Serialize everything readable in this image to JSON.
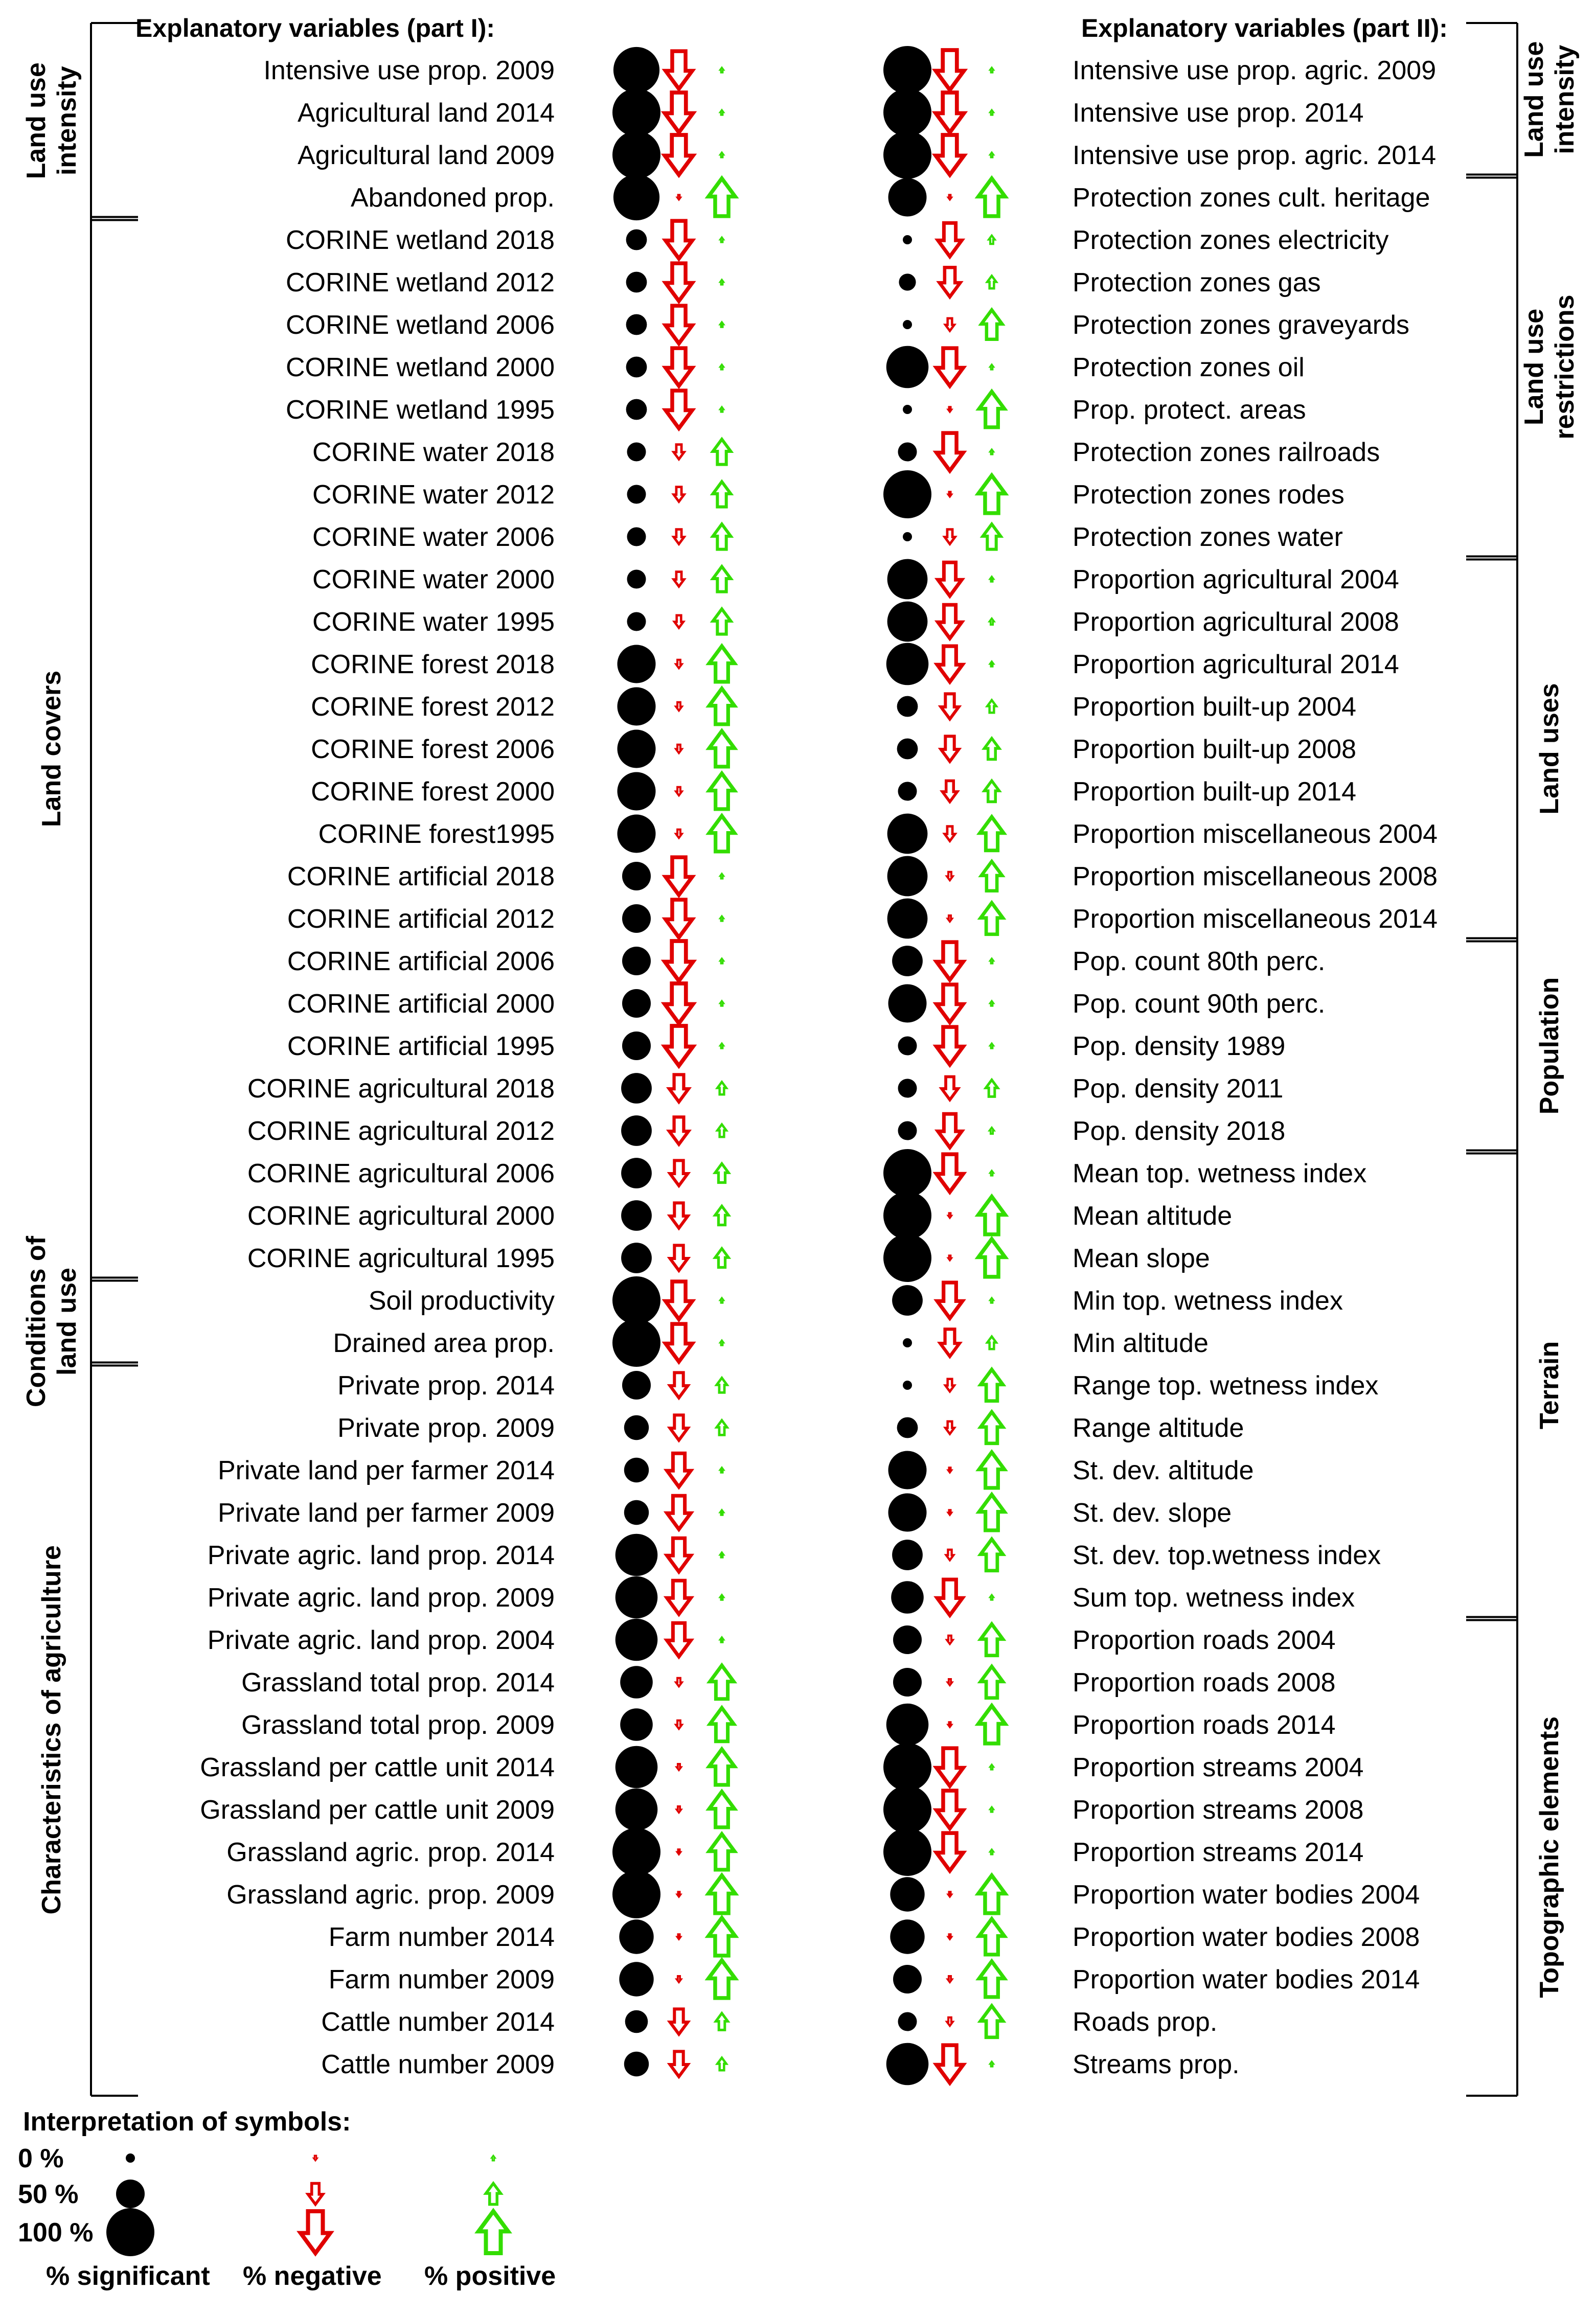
{
  "chart_data": {
    "type": "symbol-matrix",
    "headers": {
      "left": "Explanatory variables (part I):",
      "right": "Explanatory variables (part II):"
    },
    "legend": {
      "title": "Interpretation of symbols:",
      "levels": [
        "0 %",
        "50 %",
        "100 %"
      ],
      "level_values": [
        0,
        0.5,
        1
      ],
      "captions": [
        "% significant",
        "% negative",
        "% positive"
      ]
    },
    "colors": {
      "significant": "#000000",
      "negative": "#e00000",
      "positive": "#33dd00",
      "bracket": "#000000"
    },
    "left_groups": [
      {
        "label": "Land use intensity",
        "lines": [
          "Land use",
          "intensity"
        ],
        "from": 0,
        "to": 3
      },
      {
        "label": "Land covers",
        "lines": [
          "Land covers"
        ],
        "from": 4,
        "to": 28
      },
      {
        "label": "Conditions of land use",
        "lines": [
          "Conditions of",
          "land use"
        ],
        "from": 29,
        "to": 30
      },
      {
        "label": "Characteristics of agriculture",
        "lines": [
          "Characteristics of agriculture"
        ],
        "from": 31,
        "to": 47
      }
    ],
    "right_groups": [
      {
        "label": "Land use intensity",
        "lines": [
          "Land use",
          "intensity"
        ],
        "from": 0,
        "to": 2
      },
      {
        "label": "Land use restrictions",
        "lines": [
          "Land use",
          "restrictions"
        ],
        "from": 3,
        "to": 11
      },
      {
        "label": "Land uses",
        "lines": [
          "Land uses"
        ],
        "from": 12,
        "to": 20
      },
      {
        "label": "Population",
        "lines": [
          "Population"
        ],
        "from": 21,
        "to": 25
      },
      {
        "label": "Terrain",
        "lines": [
          "Terrain"
        ],
        "from": 26,
        "to": 36
      },
      {
        "label": "Topographic elements",
        "lines": [
          "Topographic elements"
        ],
        "from": 37,
        "to": 47
      }
    ],
    "left": [
      {
        "name": "Intensive use prop. 2009",
        "sig": 0.95,
        "neg": 0.9,
        "pos": 0.05
      },
      {
        "name": "Agricultural land 2014",
        "sig": 1.0,
        "neg": 0.95,
        "pos": 0.05
      },
      {
        "name": "Agricultural land 2009",
        "sig": 1.0,
        "neg": 0.95,
        "pos": 0.05
      },
      {
        "name": "Abandoned prop.",
        "sig": 0.95,
        "neg": 0.05,
        "pos": 0.9
      },
      {
        "name": "CORINE wetland 2018",
        "sig": 0.3,
        "neg": 0.9,
        "pos": 0.05
      },
      {
        "name": "CORINE wetland 2012",
        "sig": 0.3,
        "neg": 0.9,
        "pos": 0.05
      },
      {
        "name": "CORINE wetland 2006",
        "sig": 0.3,
        "neg": 0.9,
        "pos": 0.1
      },
      {
        "name": "CORINE wetland 2000",
        "sig": 0.3,
        "neg": 0.9,
        "pos": 0.05
      },
      {
        "name": "CORINE wetland 1995",
        "sig": 0.3,
        "neg": 0.9,
        "pos": 0.07
      },
      {
        "name": "CORINE water 2018",
        "sig": 0.25,
        "neg": 0.35,
        "pos": 0.6
      },
      {
        "name": "CORINE water 2012",
        "sig": 0.25,
        "neg": 0.35,
        "pos": 0.6
      },
      {
        "name": "CORINE water 2006",
        "sig": 0.25,
        "neg": 0.35,
        "pos": 0.6
      },
      {
        "name": "CORINE water 2000",
        "sig": 0.25,
        "neg": 0.35,
        "pos": 0.6
      },
      {
        "name": "CORINE water 1995",
        "sig": 0.25,
        "neg": 0.3,
        "pos": 0.6
      },
      {
        "name": "CORINE forest 2018",
        "sig": 0.75,
        "neg": 0.2,
        "pos": 0.85
      },
      {
        "name": "CORINE forest 2012",
        "sig": 0.75,
        "neg": 0.2,
        "pos": 0.85
      },
      {
        "name": "CORINE forest 2006",
        "sig": 0.75,
        "neg": 0.2,
        "pos": 0.85
      },
      {
        "name": "CORINE forest 2000",
        "sig": 0.75,
        "neg": 0.2,
        "pos": 0.85
      },
      {
        "name": "CORINE forest1995",
        "sig": 0.75,
        "neg": 0.2,
        "pos": 0.85
      },
      {
        "name": "CORINE artificial 2018",
        "sig": 0.5,
        "neg": 0.9,
        "pos": 0.05
      },
      {
        "name": "CORINE artificial 2012",
        "sig": 0.5,
        "neg": 0.9,
        "pos": 0.05
      },
      {
        "name": "CORINE artificial 2006",
        "sig": 0.5,
        "neg": 0.95,
        "pos": 0.05
      },
      {
        "name": "CORINE artificial 2000",
        "sig": 0.5,
        "neg": 0.95,
        "pos": 0.05
      },
      {
        "name": "CORINE artificial 1995",
        "sig": 0.5,
        "neg": 0.95,
        "pos": 0.05
      },
      {
        "name": "CORINE agricultural 2018",
        "sig": 0.55,
        "neg": 0.65,
        "pos": 0.3
      },
      {
        "name": "CORINE agricultural 2012",
        "sig": 0.55,
        "neg": 0.65,
        "pos": 0.3
      },
      {
        "name": "CORINE agricultural 2006",
        "sig": 0.55,
        "neg": 0.6,
        "pos": 0.45
      },
      {
        "name": "CORINE agricultural 2000",
        "sig": 0.55,
        "neg": 0.6,
        "pos": 0.45
      },
      {
        "name": "CORINE agricultural 1995",
        "sig": 0.55,
        "neg": 0.6,
        "pos": 0.45
      },
      {
        "name": "Soil productivity",
        "sig": 1.0,
        "neg": 0.9,
        "pos": 0.05
      },
      {
        "name": "Drained area prop.",
        "sig": 1.0,
        "neg": 0.9,
        "pos": 0.05
      },
      {
        "name": "Private prop. 2014",
        "sig": 0.5,
        "neg": 0.6,
        "pos": 0.35
      },
      {
        "name": "Private prop. 2009",
        "sig": 0.4,
        "neg": 0.6,
        "pos": 0.35
      },
      {
        "name": "Private land per farmer 2014",
        "sig": 0.4,
        "neg": 0.8,
        "pos": 0.1
      },
      {
        "name": "Private land per farmer 2009",
        "sig": 0.4,
        "neg": 0.8,
        "pos": 0.1
      },
      {
        "name": "Private agric. land prop. 2014",
        "sig": 0.85,
        "neg": 0.8,
        "pos": 0.1
      },
      {
        "name": "Private agric. land prop. 2009",
        "sig": 0.85,
        "neg": 0.8,
        "pos": 0.1
      },
      {
        "name": "Private agric. land prop. 2004",
        "sig": 0.85,
        "neg": 0.8,
        "pos": 0.1
      },
      {
        "name": "Grassland total prop. 2014",
        "sig": 0.6,
        "neg": 0.2,
        "pos": 0.8
      },
      {
        "name": "Grassland total prop. 2009",
        "sig": 0.6,
        "neg": 0.2,
        "pos": 0.8
      },
      {
        "name": "Grassland per cattle unit 2014",
        "sig": 0.85,
        "neg": 0.15,
        "pos": 0.85
      },
      {
        "name": "Grassland per cattle unit 2009",
        "sig": 0.85,
        "neg": 0.15,
        "pos": 0.85
      },
      {
        "name": "Grassland agric. prop. 2014",
        "sig": 1.0,
        "neg": 0.1,
        "pos": 0.85
      },
      {
        "name": "Grassland agric. prop. 2009",
        "sig": 1.0,
        "neg": 0.1,
        "pos": 0.9
      },
      {
        "name": "Farm number 2014",
        "sig": 0.65,
        "neg": 0.1,
        "pos": 0.9
      },
      {
        "name": "Farm number 2009",
        "sig": 0.65,
        "neg": 0.15,
        "pos": 0.9
      },
      {
        "name": "Cattle number 2014",
        "sig": 0.35,
        "neg": 0.6,
        "pos": 0.4
      },
      {
        "name": "Cattle number 2009",
        "sig": 0.4,
        "neg": 0.6,
        "pos": 0.3
      }
    ],
    "right": [
      {
        "name": "Intensive use prop. agric. 2009",
        "sig": 1.0,
        "neg": 0.95,
        "pos": 0.05
      },
      {
        "name": "Intensive use prop. 2014",
        "sig": 1.0,
        "neg": 0.95,
        "pos": 0.05
      },
      {
        "name": "Intensive use prop. agric. 2014",
        "sig": 1.0,
        "neg": 0.95,
        "pos": 0.05
      },
      {
        "name": "Protection zones cult. heritage",
        "sig": 0.75,
        "neg": 0.05,
        "pos": 0.9
      },
      {
        "name": "Protection zones electricity",
        "sig": 0.0,
        "neg": 0.8,
        "pos": 0.2
      },
      {
        "name": "Protection zones gas",
        "sig": 0.2,
        "neg": 0.7,
        "pos": 0.3
      },
      {
        "name": "Protection zones graveyards",
        "sig": 0.0,
        "neg": 0.3,
        "pos": 0.7
      },
      {
        "name": "Protection zones oil",
        "sig": 0.85,
        "neg": 0.9,
        "pos": 0.05
      },
      {
        "name": "Prop. protect. areas",
        "sig": 0.0,
        "neg": 0.1,
        "pos": 0.85
      },
      {
        "name": "Protection zones railroads",
        "sig": 0.25,
        "neg": 0.9,
        "pos": 0.05
      },
      {
        "name": "Protection zones rodes",
        "sig": 1.0,
        "neg": 0.1,
        "pos": 0.9
      },
      {
        "name": "Protection zones water",
        "sig": 0.0,
        "neg": 0.35,
        "pos": 0.6
      },
      {
        "name": "Proportion agricultural 2004",
        "sig": 0.8,
        "neg": 0.8,
        "pos": 0.1
      },
      {
        "name": "Proportion agricultural 2008",
        "sig": 0.8,
        "neg": 0.8,
        "pos": 0.15
      },
      {
        "name": "Proportion agricultural 2014",
        "sig": 0.85,
        "neg": 0.85,
        "pos": 0.1
      },
      {
        "name": "Proportion built-up 2004",
        "sig": 0.3,
        "neg": 0.6,
        "pos": 0.3
      },
      {
        "name": "Proportion built-up 2008",
        "sig": 0.3,
        "neg": 0.6,
        "pos": 0.5
      },
      {
        "name": "Proportion built-up 2014",
        "sig": 0.25,
        "neg": 0.5,
        "pos": 0.5
      },
      {
        "name": "Proportion miscellaneous 2004",
        "sig": 0.8,
        "neg": 0.35,
        "pos": 0.8
      },
      {
        "name": "Proportion miscellaneous 2008",
        "sig": 0.8,
        "neg": 0.2,
        "pos": 0.7
      },
      {
        "name": "Proportion miscellaneous 2014",
        "sig": 0.8,
        "neg": 0.15,
        "pos": 0.75
      },
      {
        "name": "Pop. count 80th perc.",
        "sig": 0.55,
        "neg": 0.9,
        "pos": 0.05
      },
      {
        "name": "Pop. count 90th perc.",
        "sig": 0.75,
        "neg": 0.9,
        "pos": 0.05
      },
      {
        "name": "Pop. density 1989",
        "sig": 0.25,
        "neg": 0.9,
        "pos": 0.05
      },
      {
        "name": "Pop. density 2011",
        "sig": 0.25,
        "neg": 0.55,
        "pos": 0.4
      },
      {
        "name": "Pop. density 2018",
        "sig": 0.25,
        "neg": 0.8,
        "pos": 0.15
      },
      {
        "name": "Mean top. wetness index",
        "sig": 1.0,
        "neg": 0.9,
        "pos": 0.05
      },
      {
        "name": "Mean altitude",
        "sig": 1.0,
        "neg": 0.05,
        "pos": 0.9
      },
      {
        "name": "Mean slope",
        "sig": 1.0,
        "neg": 0.05,
        "pos": 0.9
      },
      {
        "name": "Min top. wetness index",
        "sig": 0.55,
        "neg": 0.85,
        "pos": 0.05
      },
      {
        "name": "Min altitude",
        "sig": 0.0,
        "neg": 0.65,
        "pos": 0.3
      },
      {
        "name": "Range top. wetness index",
        "sig": 0.0,
        "neg": 0.3,
        "pos": 0.75
      },
      {
        "name": "Range altitude",
        "sig": 0.3,
        "neg": 0.3,
        "pos": 0.75
      },
      {
        "name": "St. dev. altitude",
        "sig": 0.75,
        "neg": 0.1,
        "pos": 0.85
      },
      {
        "name": "St. dev. slope",
        "sig": 0.75,
        "neg": 0.1,
        "pos": 0.85
      },
      {
        "name": "St. dev. top.wetness index",
        "sig": 0.55,
        "neg": 0.25,
        "pos": 0.75
      },
      {
        "name": "Sum top. wetness index",
        "sig": 0.6,
        "neg": 0.85,
        "pos": 0.05
      },
      {
        "name": "Proportion roads 2004",
        "sig": 0.5,
        "neg": 0.2,
        "pos": 0.75
      },
      {
        "name": "Proportion roads 2008",
        "sig": 0.5,
        "neg": 0.15,
        "pos": 0.75
      },
      {
        "name": "Proportion roads 2014",
        "sig": 0.85,
        "neg": 0.1,
        "pos": 0.9
      },
      {
        "name": "Proportion streams 2004",
        "sig": 1.0,
        "neg": 0.9,
        "pos": 0.05
      },
      {
        "name": "Proportion streams 2008",
        "sig": 1.0,
        "neg": 0.9,
        "pos": 0.05
      },
      {
        "name": "Proportion streams 2014",
        "sig": 1.0,
        "neg": 0.9,
        "pos": 0.05
      },
      {
        "name": "Proportion water bodies 2004",
        "sig": 0.65,
        "neg": 0.1,
        "pos": 0.9
      },
      {
        "name": "Proportion water bodies 2008",
        "sig": 0.65,
        "neg": 0.1,
        "pos": 0.85
      },
      {
        "name": "Proportion water bodies 2014",
        "sig": 0.5,
        "neg": 0.15,
        "pos": 0.85
      },
      {
        "name": "Roads prop.",
        "sig": 0.25,
        "neg": 0.2,
        "pos": 0.75
      },
      {
        "name": "Streams prop.",
        "sig": 0.85,
        "neg": 0.9,
        "pos": 0.05
      }
    ]
  }
}
